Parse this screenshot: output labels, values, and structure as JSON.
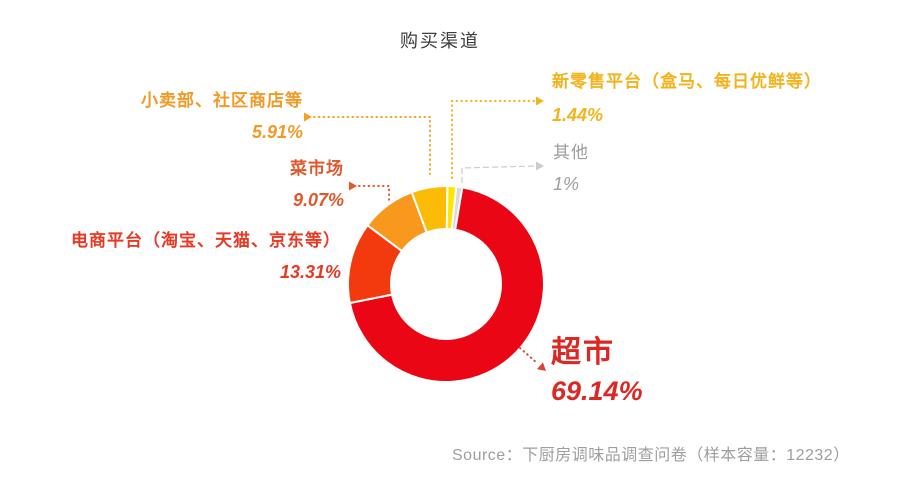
{
  "title": "购买渠道",
  "source_label": "Source：下厨房调味品调查问卷（样本容量：12232）",
  "chart_data": {
    "type": "pie",
    "subtype": "donut",
    "title": "购买渠道",
    "unit": "%",
    "slice_order": "clockwise_from_top",
    "start_angle_deg_clockwise_from_top": 6,
    "legend_position": "callout-labels",
    "slices": [
      {
        "key": "other",
        "label": "其他",
        "value": 1,
        "display": "1%",
        "color": "#D9D9D9",
        "label_color": "#9D9D9D",
        "leader_color": "#CCCCCC"
      },
      {
        "key": "supermarket",
        "label": "超市",
        "value": 69.14,
        "display": "69.14%",
        "color": "#EA0614",
        "label_color": "#DC2824",
        "leader_color": "#DB4238"
      },
      {
        "key": "ecommerce",
        "label": "电商平台（淘宝、天猫、京东等）",
        "value": 13.31,
        "display": "13.31%",
        "color": "#F23A0E",
        "label_color": "#E63A25"
      },
      {
        "key": "market",
        "label": "菜市场",
        "value": 9.07,
        "display": "9.07%",
        "color": "#F8981D",
        "label_color": "#E2572B",
        "leader_color": "#E8562B"
      },
      {
        "key": "shop",
        "label": "小卖部、社区商店等",
        "value": 5.91,
        "display": "5.91%",
        "color": "#FBBB07",
        "label_color": "#F09A27",
        "leader_color": "#F5A11E"
      },
      {
        "key": "newretail",
        "label": "新零售平台（盒马、每日优鲜等）",
        "value": 1.44,
        "display": "1.44%",
        "color": "#FFE600",
        "label_color": "#F2B31C",
        "leader_color": "#F0B41E"
      }
    ],
    "source": "Source：下厨房调味品调查问卷（样本容量：12232）"
  }
}
